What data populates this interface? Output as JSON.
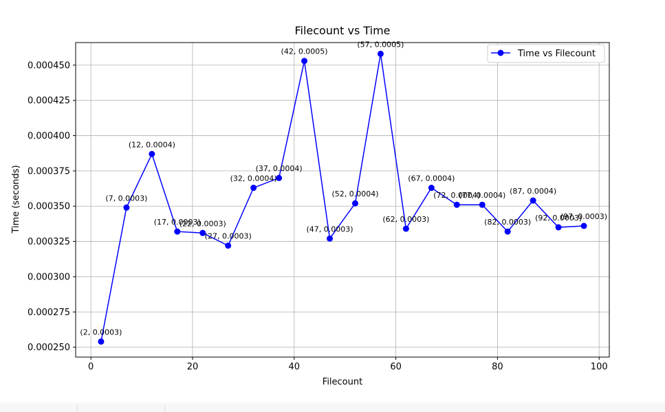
{
  "colors": {
    "series": "#0000ff",
    "grid": "#b0b0b0",
    "axis": "#000000"
  },
  "legend": {
    "placement": "top-right",
    "label": "Time vs Filecount"
  },
  "chart_data": {
    "type": "line",
    "title": "Filecount vs Time",
    "xlabel": "Filecount",
    "ylabel": "Time (seconds)",
    "xlim": [
      -3,
      102
    ],
    "ylim": [
      0.000243,
      0.000466
    ],
    "grid": true,
    "xticks": [
      0,
      20,
      40,
      60,
      80,
      100
    ],
    "xtick_labels": [
      "0",
      "20",
      "40",
      "60",
      "80",
      "100"
    ],
    "yticks": [
      0.00025,
      0.000275,
      0.0003,
      0.000325,
      0.00035,
      0.000375,
      0.0004,
      0.000425,
      0.00045
    ],
    "ytick_labels": [
      "0.000250",
      "0.000275",
      "0.000300",
      "0.000325",
      "0.000350",
      "0.000375",
      "0.000400",
      "0.000425",
      "0.000450"
    ],
    "series": [
      {
        "name": "Time vs Filecount",
        "color": "#0000ff",
        "marker": "circle",
        "x": [
          2,
          7,
          12,
          17,
          22,
          27,
          32,
          37,
          42,
          47,
          52,
          57,
          62,
          67,
          72,
          77,
          82,
          87,
          92,
          97
        ],
        "y": [
          0.000254,
          0.000349,
          0.000387,
          0.000332,
          0.000331,
          0.000322,
          0.000363,
          0.00037,
          0.000453,
          0.000327,
          0.000352,
          0.000458,
          0.000334,
          0.000363,
          0.000351,
          0.000351,
          0.000332,
          0.000354,
          0.000335,
          0.000336
        ],
        "labels": [
          "(2, 0.0003)",
          "(7, 0.0003)",
          "(12, 0.0004)",
          "(17, 0.0003)",
          "(22, 0.0003)",
          "(27, 0.0003)",
          "(32, 0.0004)",
          "(37, 0.0004)",
          "(42, 0.0005)",
          "(47, 0.0003)",
          "(52, 0.0004)",
          "(57, 0.0005)",
          "(62, 0.0003)",
          "(67, 0.0004)",
          "(72, 0.0004)",
          "(77, 0.0004)",
          "(82, 0.0003)",
          "(87, 0.0004)",
          "(92, 0.0003)",
          "(97, 0.0003)"
        ]
      }
    ]
  }
}
